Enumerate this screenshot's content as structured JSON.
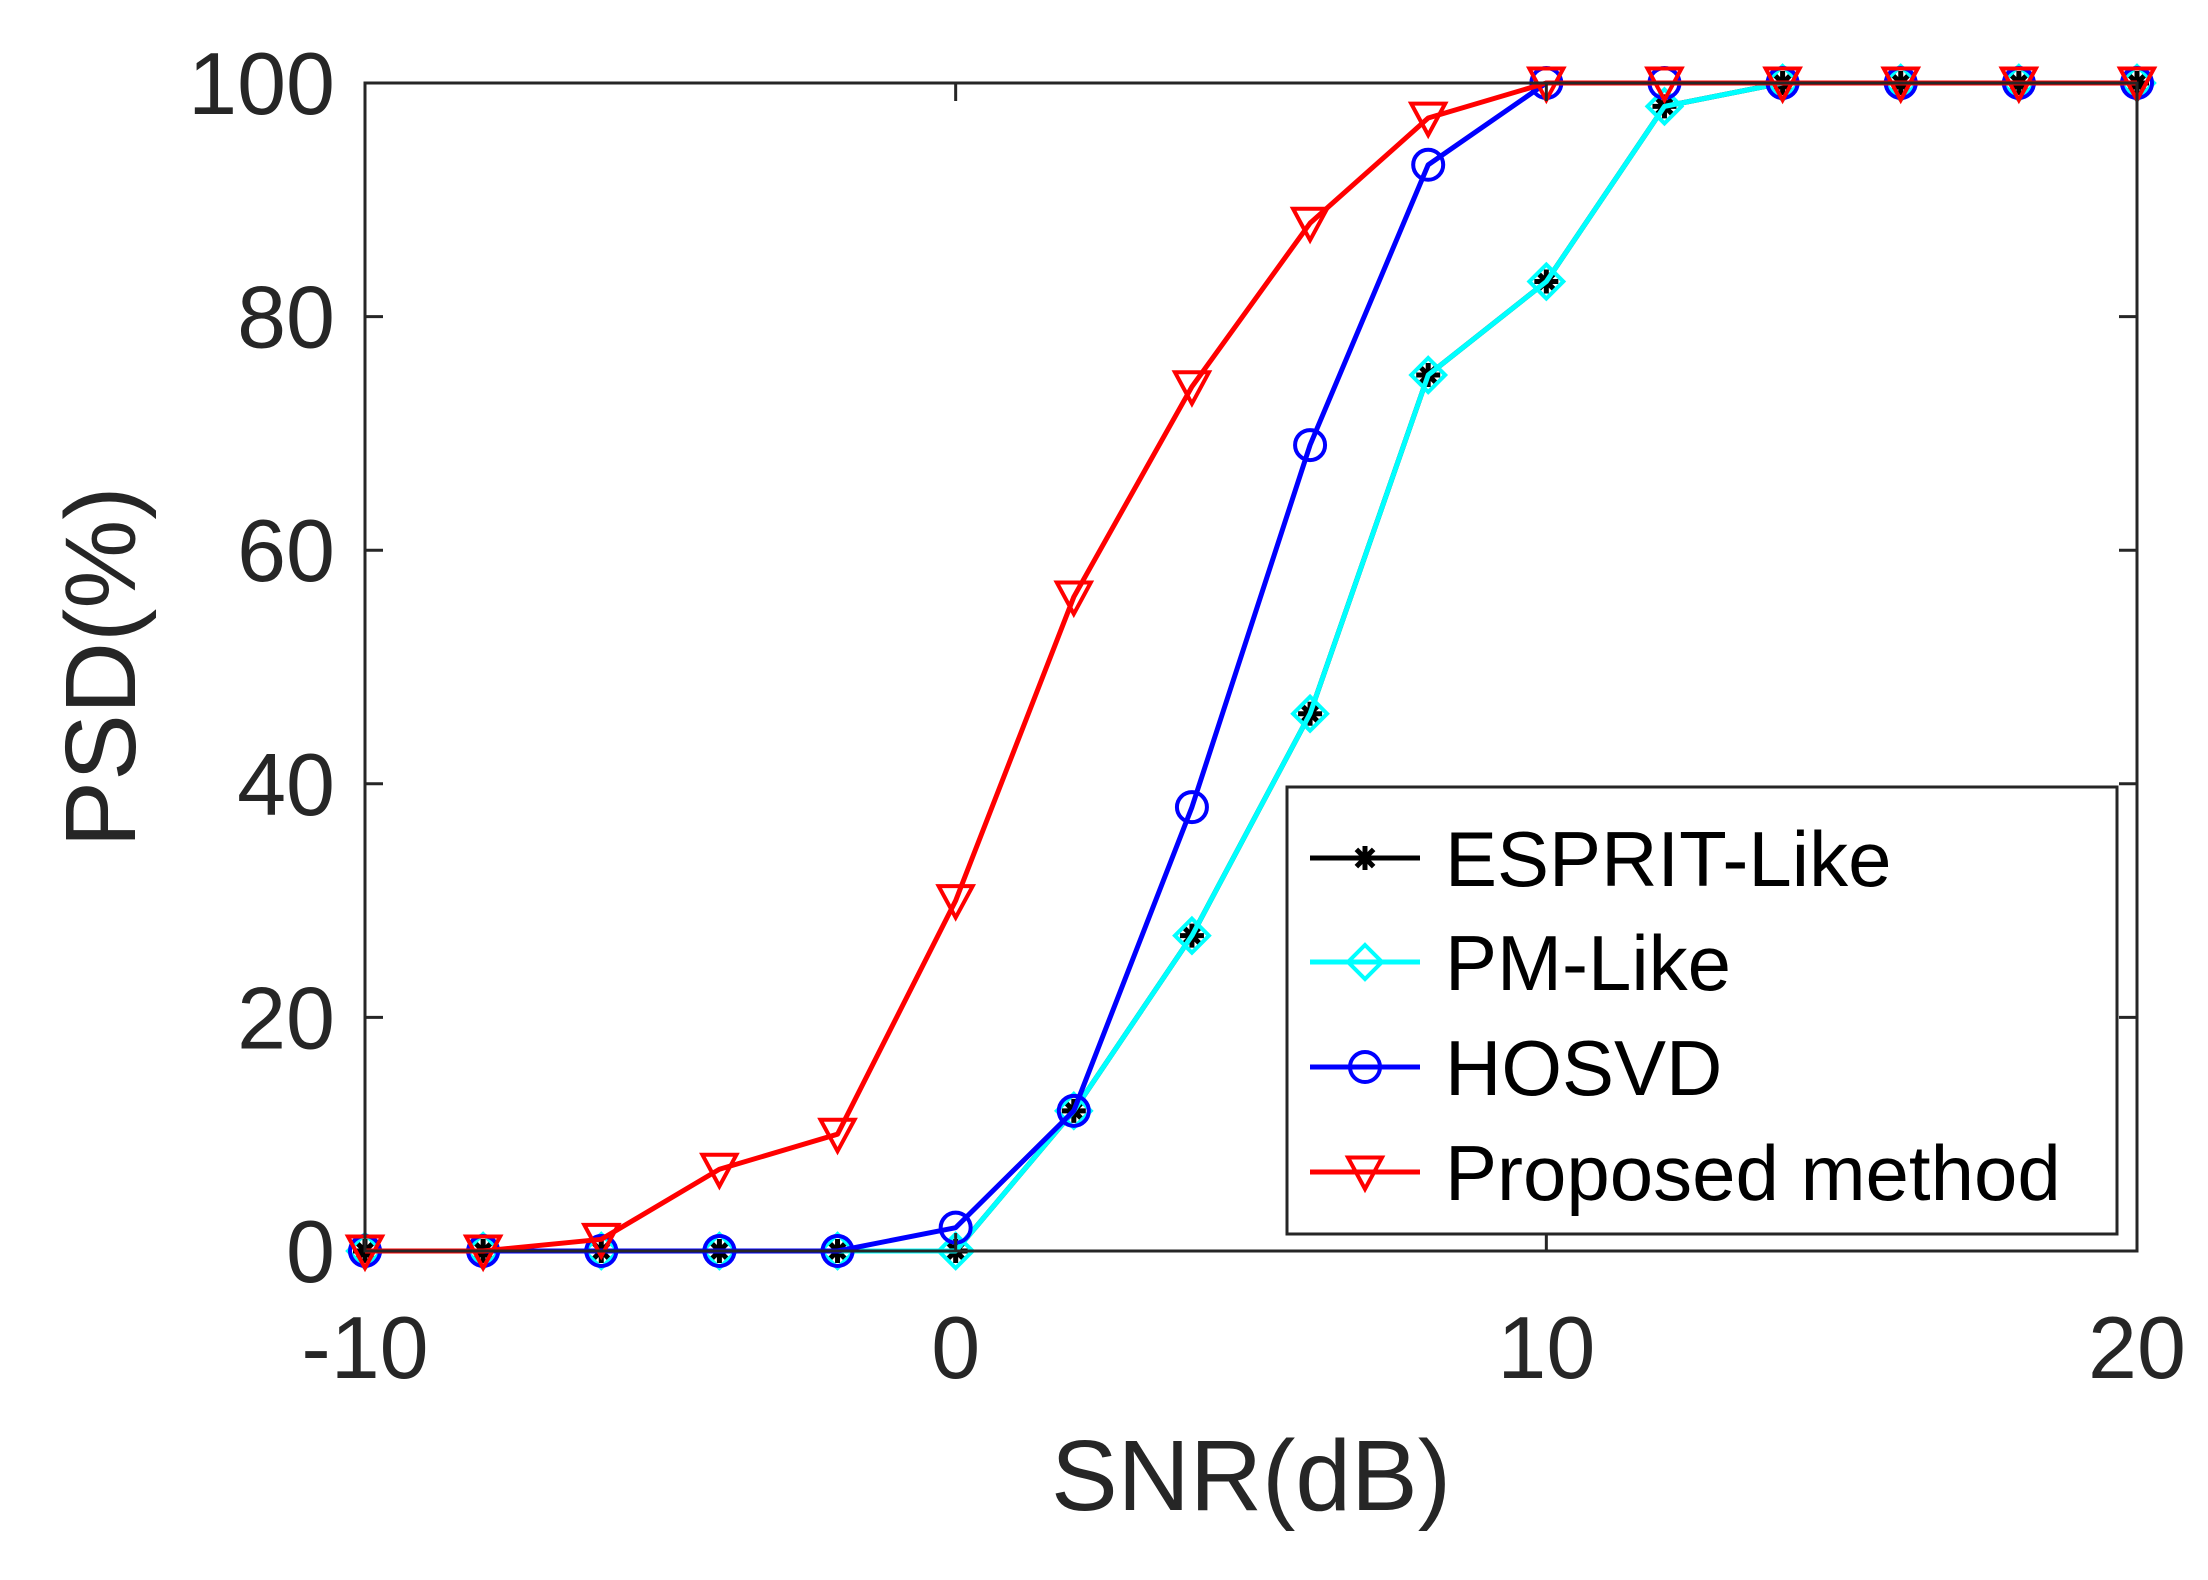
{
  "chart_data": {
    "type": "line",
    "title": "",
    "xlabel": "SNR(dB)",
    "ylabel": "PSD(%)",
    "xlim": [
      -10,
      20
    ],
    "ylim": [
      0,
      100
    ],
    "xticks": [
      -10,
      0,
      10,
      20
    ],
    "yticks": [
      0,
      20,
      40,
      60,
      80,
      100
    ],
    "x": [
      -10,
      -8,
      -6,
      -4,
      -2,
      0,
      2,
      4,
      6,
      8,
      10,
      12,
      14,
      16,
      18,
      20
    ],
    "legend_position": "bottom-right",
    "grid": false,
    "series": [
      {
        "name": "ESPRIT-Like",
        "color": "#000000",
        "marker": "asterisk",
        "values": [
          0,
          0,
          0,
          0,
          0,
          0,
          12,
          27,
          46,
          75,
          83,
          98,
          100,
          100,
          100,
          100
        ]
      },
      {
        "name": "PM-Like",
        "color": "#00ffff",
        "marker": "diamond",
        "values": [
          0,
          0,
          0,
          0,
          0,
          0,
          12,
          27,
          46,
          75,
          83,
          98,
          100,
          100,
          100,
          100
        ]
      },
      {
        "name": "HOSVD",
        "color": "#0000ff",
        "marker": "circle",
        "values": [
          0,
          0,
          0,
          0,
          0,
          2,
          12,
          38,
          69,
          93,
          100,
          100,
          100,
          100,
          100,
          100
        ]
      },
      {
        "name": "Proposed method",
        "color": "#ff0000",
        "marker": "triangle-down",
        "values": [
          0,
          0,
          1,
          7,
          10,
          30,
          56,
          74,
          88,
          97,
          100,
          100,
          100,
          100,
          100,
          100
        ]
      }
    ]
  }
}
